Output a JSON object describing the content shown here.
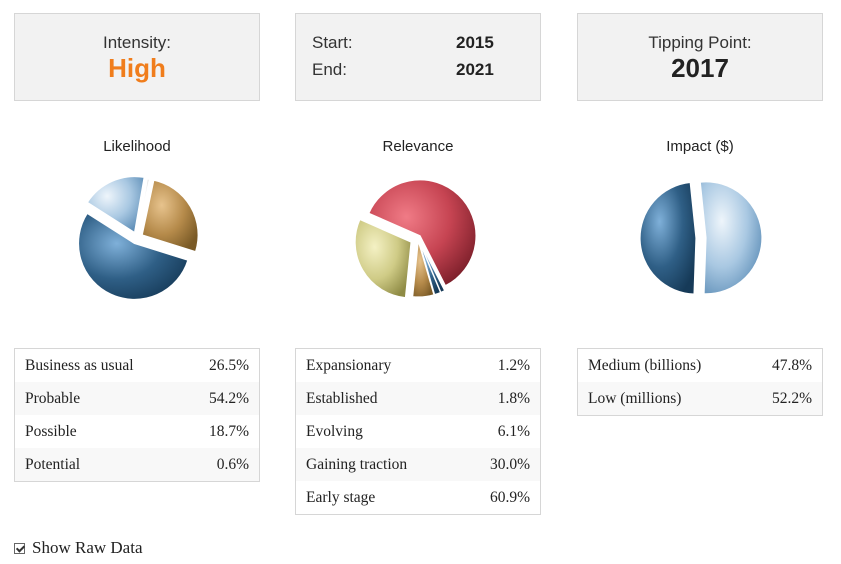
{
  "intensity": {
    "label": "Intensity:",
    "value": "High",
    "color": "#f07d1c"
  },
  "years": {
    "start_label": "Start:",
    "start_value": "2015",
    "end_label": "End:",
    "end_value": "2021"
  },
  "tipping": {
    "label": "Tipping Point:",
    "value": "2017"
  },
  "show_raw": {
    "label": "Show Raw Data",
    "checked": true
  },
  "chart_data": [
    {
      "type": "pie",
      "title": "Likelihood",
      "slices": [
        {
          "label": "Business as usual",
          "value": 26.5,
          "display": "26.5%"
        },
        {
          "label": "Probable",
          "value": 54.2,
          "display": "54.2%"
        },
        {
          "label": "Possible",
          "value": 18.7,
          "display": "18.7%"
        },
        {
          "label": "Potential",
          "value": 0.6,
          "display": "0.6%"
        }
      ]
    },
    {
      "type": "pie",
      "title": "Relevance",
      "slices": [
        {
          "label": "Expansionary",
          "value": 1.2,
          "display": "1.2%"
        },
        {
          "label": "Established",
          "value": 1.8,
          "display": "1.8%"
        },
        {
          "label": "Evolving",
          "value": 6.1,
          "display": "6.1%"
        },
        {
          "label": "Gaining traction",
          "value": 30.0,
          "display": "30.0%"
        },
        {
          "label": "Early stage",
          "value": 60.9,
          "display": "60.9%"
        }
      ]
    },
    {
      "type": "pie",
      "title": "Impact ($)",
      "slices": [
        {
          "label": "Medium (billions)",
          "value": 47.8,
          "display": "47.8%"
        },
        {
          "label": "Low (millions)",
          "value": 52.2,
          "display": "52.2%"
        }
      ]
    }
  ]
}
